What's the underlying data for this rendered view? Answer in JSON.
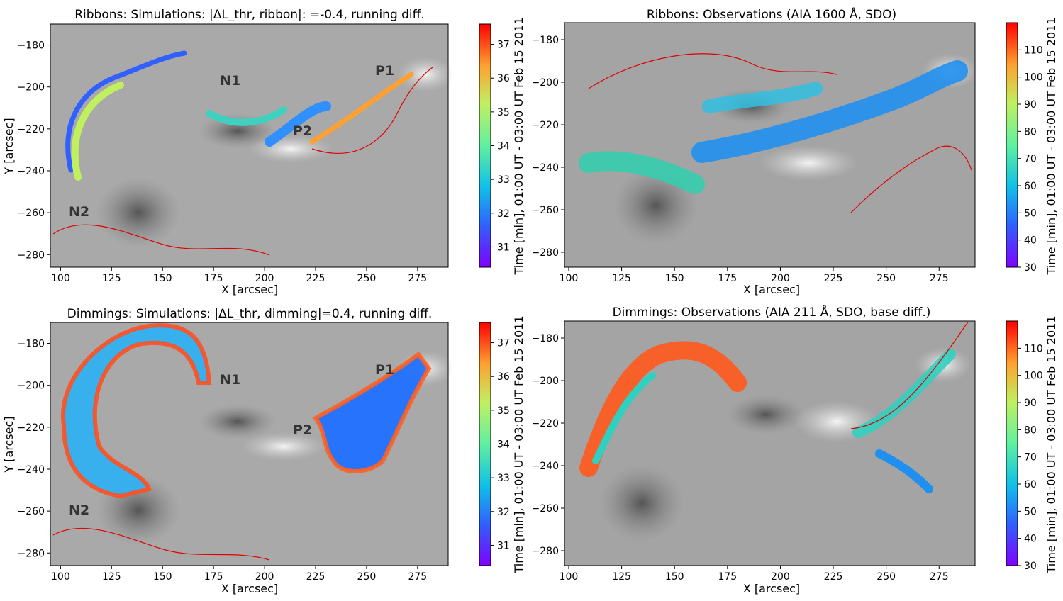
{
  "figure": {
    "panels": [
      {
        "title": "Ribbons: Simulations:  |ΔL_thr, ribbon|: =-0.4, running diff.",
        "xlabel": "X [arcsec]",
        "ylabel": "Y [arcsec]",
        "colorbar_label": "Time [min], 01:00 UT - 03:00 UT Feb 15 2011",
        "colorbar_ticks": [
          31,
          32,
          33,
          34,
          35,
          36,
          37
        ],
        "labels": [
          "N1",
          "P1",
          "P2",
          "N2"
        ]
      },
      {
        "title": "Ribbons: Observations (AIA 1600 Å, SDO)",
        "xlabel": "X [arcsec]",
        "ylabel": "",
        "colorbar_label": "Time [min], 01:00 UT - 03:00 UT Feb 15 2011",
        "colorbar_ticks": [
          30,
          40,
          50,
          60,
          70,
          80,
          90,
          100,
          110
        ],
        "labels": []
      },
      {
        "title": "Dimmings: Simulations: |ΔL_thr, dimming|=0.4, running diff.",
        "xlabel": "X [arcsec]",
        "ylabel": "Y [arcsec]",
        "colorbar_label": "Time [min], 01:00 UT - 03:00 UT Feb 15 2011",
        "colorbar_ticks": [
          31,
          32,
          33,
          34,
          35,
          36,
          37
        ],
        "labels": [
          "N1",
          "P1",
          "P2",
          "N2"
        ]
      },
      {
        "title": "Dimmings: Observations (AIA 211 Å, SDO, base diff.)",
        "xlabel": "X [arcsec]",
        "ylabel": "",
        "colorbar_label": "Time [min], 01:00 UT - 03:00 UT Feb 15 2011",
        "colorbar_ticks": [
          30,
          40,
          50,
          60,
          70,
          80,
          90,
          100,
          110
        ],
        "labels": []
      }
    ]
  },
  "chart_data": [
    {
      "type": "heatmap",
      "title": "Ribbons: Simulations:  |ΔL_thr, ribbon|: =-0.4, running diff.",
      "xlabel": "X [arcsec]",
      "ylabel": "Y [arcsec]",
      "xlim": [
        95,
        290
      ],
      "ylim": [
        -286,
        -170
      ],
      "xticks": [
        100,
        125,
        150,
        175,
        200,
        225,
        250,
        275
      ],
      "yticks": [
        -180,
        -200,
        -220,
        -240,
        -260,
        -280
      ],
      "colorbar": {
        "label": "Time [min], 01:00 UT - 03:00 UT Feb 15 2011",
        "range": [
          30.4,
          37.6
        ],
        "ticks": [
          31,
          32,
          33,
          34,
          35,
          36,
          37
        ],
        "colormap": "rainbow"
      },
      "annotations": [
        {
          "text": "N1",
          "x": 180,
          "y": -195
        },
        {
          "text": "P1",
          "x": 257,
          "y": -191
        },
        {
          "text": "P2",
          "x": 215,
          "y": -221
        },
        {
          "text": "N2",
          "x": 100,
          "y": -261
        }
      ]
    },
    {
      "type": "heatmap",
      "title": "Ribbons: Observations (AIA 1600 Å, SDO)",
      "xlabel": "X [arcsec]",
      "ylabel": "",
      "xlim": [
        98,
        292
      ],
      "ylim": [
        -287,
        -172
      ],
      "xticks": [
        100,
        125,
        150,
        175,
        200,
        225,
        250,
        275
      ],
      "yticks": [
        -180,
        -200,
        -220,
        -240,
        -260,
        -280
      ],
      "colorbar": {
        "label": "Time [min], 01:00 UT - 03:00 UT Feb 15 2011",
        "range": [
          30,
          120
        ],
        "ticks": [
          30,
          40,
          50,
          60,
          70,
          80,
          90,
          100,
          110
        ],
        "colormap": "rainbow"
      },
      "annotations": []
    },
    {
      "type": "heatmap",
      "title": "Dimmings: Simulations: |ΔL_thr, dimming|=0.4, running diff.",
      "xlabel": "X [arcsec]",
      "ylabel": "Y [arcsec]",
      "xlim": [
        95,
        290
      ],
      "ylim": [
        -286,
        -170
      ],
      "xticks": [
        100,
        125,
        150,
        175,
        200,
        225,
        250,
        275
      ],
      "yticks": [
        -180,
        -200,
        -220,
        -240,
        -260,
        -280
      ],
      "colorbar": {
        "label": "Time [min], 01:00 UT - 03:00 UT Feb 15 2011",
        "range": [
          30.4,
          37.6
        ],
        "ticks": [
          31,
          32,
          33,
          34,
          35,
          36,
          37
        ],
        "colormap": "rainbow"
      },
      "annotations": [
        {
          "text": "N1",
          "x": 180,
          "y": -195
        },
        {
          "text": "P1",
          "x": 257,
          "y": -191
        },
        {
          "text": "P2",
          "x": 215,
          "y": -221
        },
        {
          "text": "N2",
          "x": 100,
          "y": -261
        }
      ]
    },
    {
      "type": "heatmap",
      "title": "Dimmings: Observations (AIA 211 Å, SDO, base diff.)",
      "xlabel": "X [arcsec]",
      "ylabel": "",
      "xlim": [
        98,
        292
      ],
      "ylim": [
        -287,
        -172
      ],
      "xticks": [
        100,
        125,
        150,
        175,
        200,
        225,
        250,
        275
      ],
      "yticks": [
        -180,
        -200,
        -220,
        -240,
        -260,
        -280
      ],
      "colorbar": {
        "label": "Time [min], 01:00 UT - 03:00 UT Feb 15 2011",
        "range": [
          30,
          120
        ],
        "ticks": [
          30,
          40,
          50,
          60,
          70,
          80,
          90,
          100,
          110
        ],
        "colormap": "rainbow"
      },
      "annotations": []
    }
  ]
}
